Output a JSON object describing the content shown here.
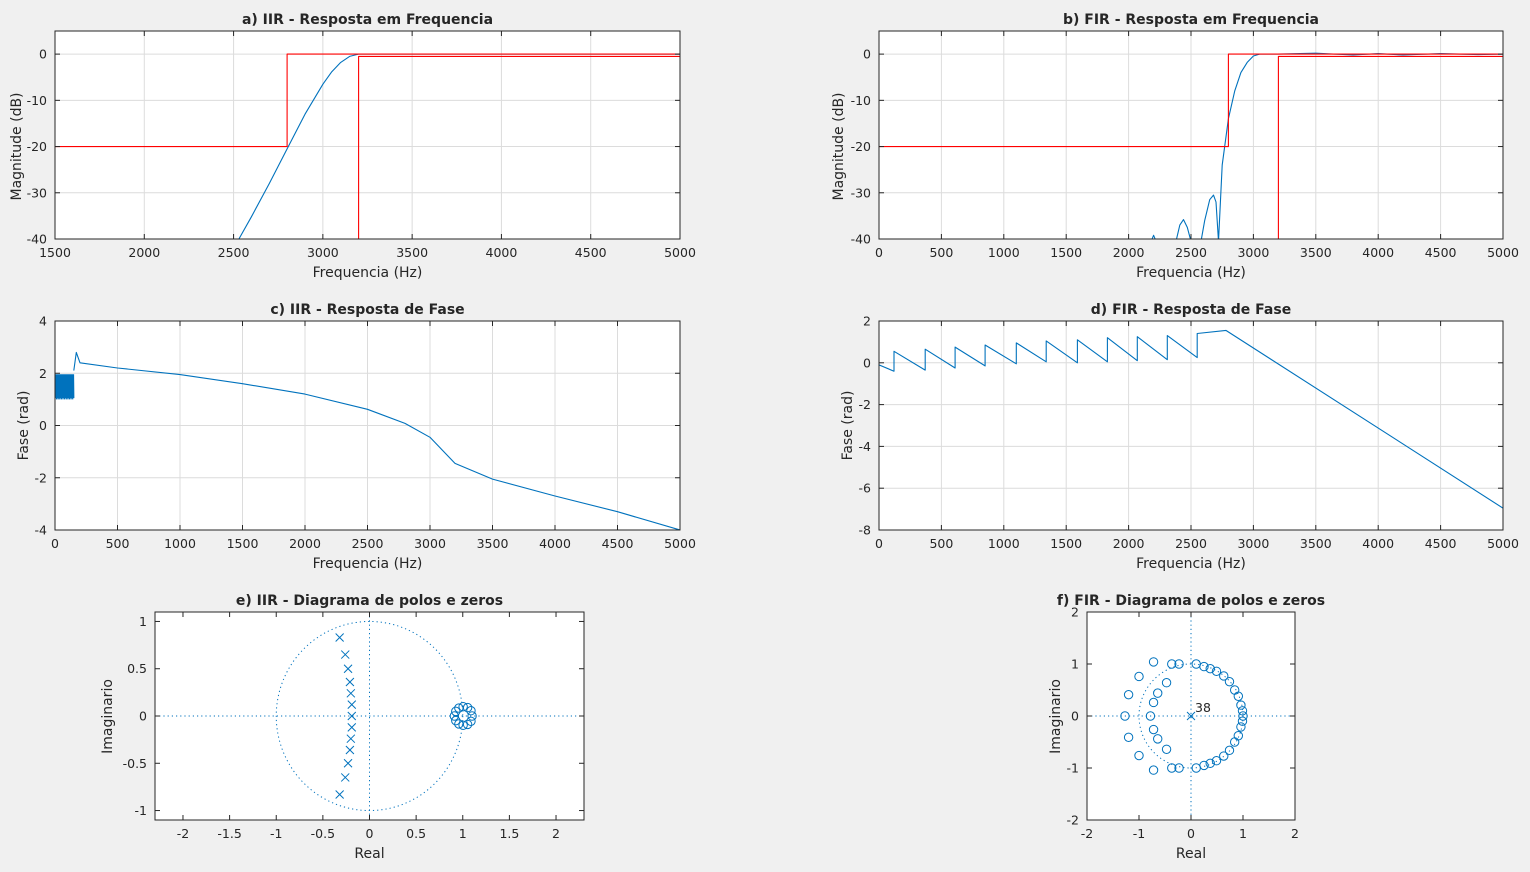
{
  "colors": {
    "background": "#f0f0f0",
    "axes_bg": "#ffffff",
    "line": "#0072bd",
    "mask": "#ff0000",
    "grid": "#dcdcdc",
    "text": "#262626"
  },
  "chart_data": [
    {
      "id": "a",
      "type": "line",
      "title": "a) IIR - Resposta em Frequencia",
      "xlabel": "Frequencia (Hz)",
      "ylabel": "Magnitude (dB)",
      "xlim": [
        1500,
        5000
      ],
      "ylim": [
        -40,
        5
      ],
      "xticks": [
        1500,
        2000,
        2500,
        3000,
        3500,
        4000,
        4500,
        5000
      ],
      "yticks": [
        -40,
        -30,
        -20,
        -10,
        0
      ],
      "grid": true,
      "series": [
        {
          "role": "response",
          "x": [
            2530,
            2600,
            2700,
            2800,
            2900,
            3000,
            3050,
            3100,
            3150,
            3200,
            3300,
            3500,
            4000,
            5000
          ],
          "y": [
            -40,
            -35.2,
            -28,
            -20.5,
            -13,
            -6.5,
            -3.8,
            -1.8,
            -0.5,
            0,
            0,
            0,
            0,
            0
          ]
        },
        {
          "role": "mask",
          "x": [
            1500,
            2800,
            2800,
            5000
          ],
          "y": [
            -20,
            -20,
            0,
            0
          ]
        },
        {
          "role": "mask",
          "x": [
            3200,
            3200,
            5000
          ],
          "y": [
            -40,
            -0.5,
            -0.5
          ]
        }
      ]
    },
    {
      "id": "b",
      "type": "line",
      "title": "b) FIR - Resposta em Frequencia",
      "xlabel": "Frequencia (Hz)",
      "ylabel": "Magnitude (dB)",
      "xlim": [
        0,
        5000
      ],
      "ylim": [
        -40,
        5
      ],
      "xticks": [
        0,
        500,
        1000,
        1500,
        2000,
        2500,
        3000,
        3500,
        4000,
        4500,
        5000
      ],
      "yticks": [
        -40,
        -30,
        -20,
        -10,
        0
      ],
      "grid": true,
      "series": [
        {
          "role": "response",
          "x": [
            2180,
            2200,
            2220,
            2240,
            2280,
            2330,
            2380,
            2410,
            2440,
            2470,
            2500,
            2520,
            2540,
            2580,
            2610,
            2650,
            2680,
            2700,
            2720,
            2750,
            2800,
            2850,
            2900,
            2950,
            3000,
            3050,
            3100,
            3200,
            3500,
            3800,
            4000,
            4200,
            4500,
            4800,
            5000
          ],
          "y": [
            -40.5,
            -39.2,
            -40.5,
            -40.5,
            -40.5,
            -40.5,
            -40.5,
            -37,
            -35.8,
            -37.5,
            -40.5,
            -40.5,
            -40.5,
            -40.5,
            -36,
            -31.5,
            -30.5,
            -32,
            -40.5,
            -24,
            -14,
            -8,
            -4,
            -1.8,
            -0.4,
            0,
            0,
            0,
            0.2,
            -0.2,
            0.1,
            -0.2,
            0.1,
            -0.1,
            0
          ]
        },
        {
          "role": "mask",
          "x": [
            0,
            2800,
            2800,
            5000
          ],
          "y": [
            -20,
            -20,
            0,
            0
          ]
        },
        {
          "role": "mask",
          "x": [
            3200,
            3200,
            5000
          ],
          "y": [
            -40,
            -0.5,
            -0.5
          ]
        }
      ]
    },
    {
      "id": "c",
      "type": "line",
      "title": "c) IIR - Resposta de Fase",
      "xlabel": "Frequencia (Hz)",
      "ylabel": "Fase (rad)",
      "xlim": [
        0,
        5000
      ],
      "ylim": [
        -4,
        4
      ],
      "xticks": [
        0,
        500,
        1000,
        1500,
        2000,
        2500,
        3000,
        3500,
        4000,
        4500,
        5000
      ],
      "yticks": [
        -4,
        -2,
        0,
        2,
        4
      ],
      "grid": true,
      "noise_band": {
        "x": [
          0,
          150
        ],
        "y": [
          1.0,
          2.0
        ]
      },
      "series": [
        {
          "role": "response",
          "x": [
            150,
            170,
            200,
            500,
            1000,
            1500,
            2000,
            2500,
            2800,
            3000,
            3200,
            3500,
            4000,
            4500,
            5000
          ],
          "y": [
            2.1,
            2.8,
            2.4,
            2.2,
            1.95,
            1.6,
            1.2,
            0.62,
            0.08,
            -0.45,
            -1.45,
            -2.05,
            -2.7,
            -3.3,
            -4.0
          ]
        }
      ]
    },
    {
      "id": "d",
      "type": "line",
      "title": "d) FIR - Resposta de Fase",
      "xlabel": "Frequencia (Hz)",
      "ylabel": "Fase (rad)",
      "xlim": [
        0,
        5000
      ],
      "ylim": [
        -8,
        2
      ],
      "xticks": [
        0,
        500,
        1000,
        1500,
        2000,
        2500,
        3000,
        3500,
        4000,
        4500,
        5000
      ],
      "yticks": [
        -8,
        -6,
        -4,
        -2,
        0,
        2
      ],
      "grid": true,
      "series": [
        {
          "role": "response",
          "x": [
            0,
            120,
            120,
            370,
            370,
            610,
            610,
            850,
            850,
            1100,
            1100,
            1340,
            1340,
            1590,
            1590,
            1830,
            1830,
            2070,
            2070,
            2310,
            2310,
            2550,
            2550,
            2780,
            5000
          ],
          "y": [
            -0.1,
            -0.4,
            0.55,
            -0.35,
            0.65,
            -0.25,
            0.75,
            -0.15,
            0.85,
            -0.05,
            0.95,
            0.05,
            1.05,
            0.0,
            1.1,
            0.05,
            1.2,
            0.1,
            1.25,
            0.15,
            1.3,
            0.25,
            1.4,
            1.55,
            -6.95
          ]
        }
      ]
    },
    {
      "id": "e",
      "type": "scatter",
      "title": "e) IIR - Diagrama de polos e zeros",
      "xlabel": "Real",
      "ylabel": "Imaginario",
      "xlim": [
        -2.3,
        2.3
      ],
      "ylim": [
        -1.1,
        1.1
      ],
      "xticks": [
        -2,
        -1.5,
        -1,
        -0.5,
        0,
        0.5,
        1,
        1.5,
        2
      ],
      "xtick_labels": [
        "-2",
        "-1.5",
        "-1",
        "-0.5",
        "0",
        "0.5",
        "1",
        "1.5",
        "2"
      ],
      "yticks": [
        -1,
        -0.5,
        0,
        0.5,
        1
      ],
      "ytick_labels": [
        "-1",
        "-0.5",
        "0",
        "0.5",
        "1"
      ],
      "grid": false,
      "unit_circle": true,
      "poles": [
        [
          -0.32,
          0.83
        ],
        [
          -0.26,
          0.65
        ],
        [
          -0.23,
          0.5
        ],
        [
          -0.21,
          0.36
        ],
        [
          -0.2,
          0.24
        ],
        [
          -0.19,
          0.12
        ],
        [
          -0.19,
          0.0
        ],
        [
          -0.19,
          -0.12
        ],
        [
          -0.2,
          -0.24
        ],
        [
          -0.21,
          -0.36
        ],
        [
          -0.23,
          -0.5
        ],
        [
          -0.26,
          -0.65
        ],
        [
          -0.32,
          -0.83
        ]
      ],
      "zeros": [
        [
          1.1,
          0
        ],
        [
          1.088,
          0.056
        ],
        [
          1.052,
          0.089
        ],
        [
          1.004,
          0.098
        ],
        [
          0.958,
          0.084
        ],
        [
          0.925,
          0.049
        ],
        [
          0.91,
          0
        ],
        [
          0.925,
          -0.049
        ],
        [
          0.958,
          -0.084
        ],
        [
          1.004,
          -0.098
        ],
        [
          1.052,
          -0.089
        ],
        [
          1.088,
          -0.056
        ]
      ]
    },
    {
      "id": "f",
      "type": "scatter",
      "title": "f) FIR - Diagrama de polos e zeros",
      "xlabel": "Real",
      "ylabel": "Imaginario",
      "xlim": [
        -2,
        2
      ],
      "ylim": [
        -2,
        2
      ],
      "xticks": [
        -2,
        -1,
        0,
        1,
        2
      ],
      "yticks": [
        -2,
        -1,
        0,
        1,
        2
      ],
      "grid": false,
      "unit_circle": true,
      "annotation": "38",
      "poles": [
        [
          0,
          0
        ]
      ],
      "zeros": [
        [
          -0.37,
          1.0
        ],
        [
          -0.23,
          1.0
        ],
        [
          0.1,
          1.0
        ],
        [
          0.25,
          0.95
        ],
        [
          0.37,
          0.91
        ],
        [
          0.49,
          0.86
        ],
        [
          0.63,
          0.77
        ],
        [
          0.74,
          0.66
        ],
        [
          0.84,
          0.5
        ],
        [
          0.91,
          0.38
        ],
        [
          0.96,
          0.21
        ],
        [
          0.99,
          0.1
        ],
        [
          1.0,
          0.0
        ],
        [
          0.99,
          -0.1
        ],
        [
          0.96,
          -0.21
        ],
        [
          0.91,
          -0.38
        ],
        [
          0.84,
          -0.5
        ],
        [
          0.74,
          -0.66
        ],
        [
          0.63,
          -0.77
        ],
        [
          0.49,
          -0.86
        ],
        [
          0.37,
          -0.91
        ],
        [
          0.25,
          -0.95
        ],
        [
          0.1,
          -1.0
        ],
        [
          -0.23,
          -1.0
        ],
        [
          -0.37,
          -1.0
        ],
        [
          -1.27,
          0.0
        ],
        [
          -1.2,
          0.41
        ],
        [
          -1.2,
          -0.41
        ],
        [
          -1.0,
          0.76
        ],
        [
          -1.0,
          -0.76
        ],
        [
          -0.72,
          1.04
        ],
        [
          -0.72,
          -1.04
        ],
        [
          -0.47,
          0.64
        ],
        [
          -0.47,
          -0.64
        ],
        [
          -0.64,
          0.44
        ],
        [
          -0.64,
          -0.44
        ],
        [
          -0.72,
          0.26
        ],
        [
          -0.72,
          -0.26
        ],
        [
          -0.78,
          0.0
        ]
      ]
    }
  ]
}
